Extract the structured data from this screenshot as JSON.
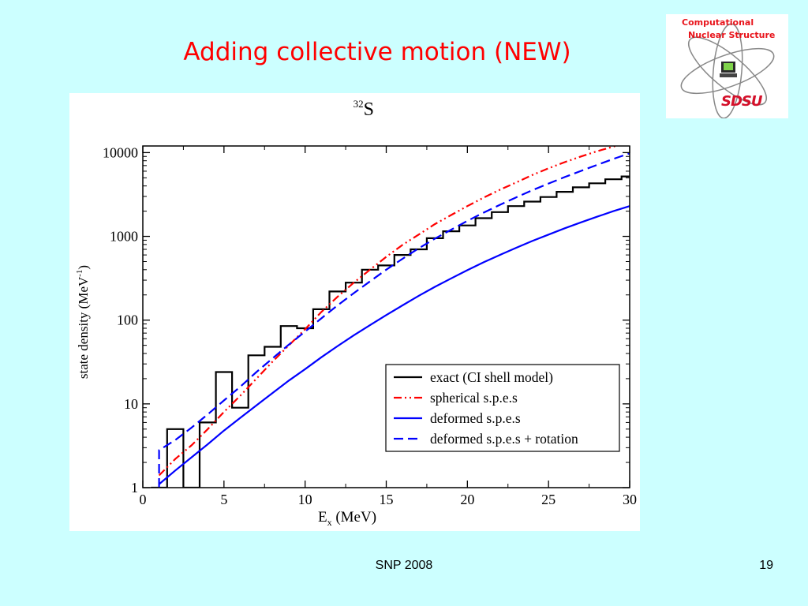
{
  "slide": {
    "title": "Adding collective motion (NEW)",
    "footer_center": "SNP 2008",
    "page_number": "19"
  },
  "logo": {
    "line1": "Computational",
    "line2": "Nuclear Structure",
    "line3": "SDSU",
    "icon": "atom-orbit-computer-icon"
  },
  "chart_data": {
    "type": "line",
    "title_sup": "32",
    "title_main": "S",
    "xlabel_main": "E",
    "xlabel_sub": "x",
    "xlabel_unit": " (MeV)",
    "ylabel_main": "state density (MeV",
    "ylabel_sup": "-1",
    "ylabel_end": ")",
    "xlim": [
      0,
      30
    ],
    "ylim": [
      1,
      12000
    ],
    "yscale": "log",
    "x_ticks": [
      0,
      5,
      10,
      15,
      20,
      25,
      30
    ],
    "x_tick_labels": [
      "0",
      "5",
      "10",
      "15",
      "20",
      "25",
      "30"
    ],
    "y_ticks": [
      1,
      10,
      100,
      1000,
      10000
    ],
    "y_tick_labels": [
      "1",
      "10",
      "100",
      "1000",
      "10000"
    ],
    "legend_position": "lower-right",
    "series": [
      {
        "name": "exact (CI shell model)",
        "color": "#000000",
        "style": "step",
        "dash": "",
        "x": [
          0.5,
          1.5,
          1.5,
          2.5,
          2.5,
          3.5,
          3.5,
          4.5,
          4.5,
          5.5,
          5.5,
          6.5,
          6.5,
          7.5,
          7.5,
          8.5,
          8.5,
          9.5,
          9.5,
          10.5,
          10.5,
          11.5,
          11.5,
          12.5,
          12.5,
          13.5,
          13.5,
          14.5,
          14.5,
          15.5,
          15.5,
          16.5,
          16.5,
          17.5,
          17.5,
          18.5,
          18.5,
          19.5,
          19.5,
          20.5,
          20.5,
          21.5,
          21.5,
          22.5,
          22.5,
          23.5,
          23.5,
          24.5,
          24.5,
          25.5,
          25.5,
          26.5,
          26.5,
          27.5,
          27.5,
          28.5,
          28.5,
          29.5,
          29.5,
          30
        ],
        "y": [
          1,
          1,
          5,
          5,
          1,
          1,
          6,
          6,
          24,
          24,
          9,
          9,
          38,
          38,
          48,
          48,
          85,
          85,
          80,
          80,
          135,
          135,
          220,
          220,
          280,
          280,
          400,
          400,
          450,
          450,
          600,
          600,
          700,
          700,
          950,
          950,
          1150,
          1150,
          1350,
          1350,
          1650,
          1650,
          1950,
          1950,
          2300,
          2300,
          2600,
          2600,
          2950,
          2950,
          3400,
          3400,
          3850,
          3850,
          4300,
          4300,
          4800,
          4800,
          5200,
          5200
        ]
      },
      {
        "name": "spherical s.p.e.s",
        "color": "#ff0000",
        "style": "line",
        "dash": "10,4,2,4,2,4",
        "x": [
          1,
          2,
          3,
          4,
          5,
          6,
          7,
          8,
          9,
          10,
          11,
          12,
          13,
          14,
          15,
          16,
          17,
          18,
          19,
          20,
          21,
          22,
          23,
          24,
          25,
          26,
          27,
          28,
          29,
          30
        ],
        "y": [
          1.4,
          2.2,
          3.2,
          5.0,
          8.0,
          12.5,
          20,
          32,
          50,
          78,
          125,
          190,
          280,
          400,
          570,
          790,
          1050,
          1400,
          1800,
          2300,
          2900,
          3600,
          4400,
          5400,
          6500,
          7700,
          9000,
          10400,
          11800,
          13500
        ]
      },
      {
        "name": "deformed s.p.e.s",
        "color": "#0000ff",
        "style": "line",
        "dash": "",
        "x": [
          1,
          2,
          3,
          4,
          5,
          6,
          7,
          8,
          9,
          10,
          11,
          12,
          13,
          14,
          15,
          16,
          17,
          18,
          19,
          20,
          21,
          22,
          23,
          24,
          25,
          26,
          27,
          28,
          29,
          30
        ],
        "y": [
          1.1,
          1.6,
          2.3,
          3.3,
          4.8,
          6.8,
          9.6,
          13.5,
          19,
          26,
          36,
          49,
          66,
          87,
          115,
          150,
          195,
          250,
          315,
          395,
          490,
          600,
          730,
          880,
          1050,
          1250,
          1470,
          1720,
          2000,
          2300
        ]
      },
      {
        "name": "deformed s.p.e.s + rotation",
        "color": "#0000ff",
        "style": "line",
        "dash": "12,6",
        "x": [
          1,
          1,
          2,
          3,
          4,
          5,
          6,
          7,
          8,
          9,
          10,
          11,
          12,
          13,
          14,
          15,
          16,
          17,
          18,
          19,
          20,
          21,
          22,
          23,
          24,
          25,
          26,
          27,
          28,
          29,
          30
        ],
        "y": [
          1,
          2.8,
          3.7,
          5.2,
          7.5,
          11,
          16,
          24,
          35,
          51,
          73,
          105,
          150,
          210,
          290,
          400,
          540,
          720,
          940,
          1200,
          1530,
          1920,
          2380,
          2920,
          3550,
          4270,
          5100,
          6050,
          7150,
          8400,
          9800
        ]
      }
    ]
  }
}
